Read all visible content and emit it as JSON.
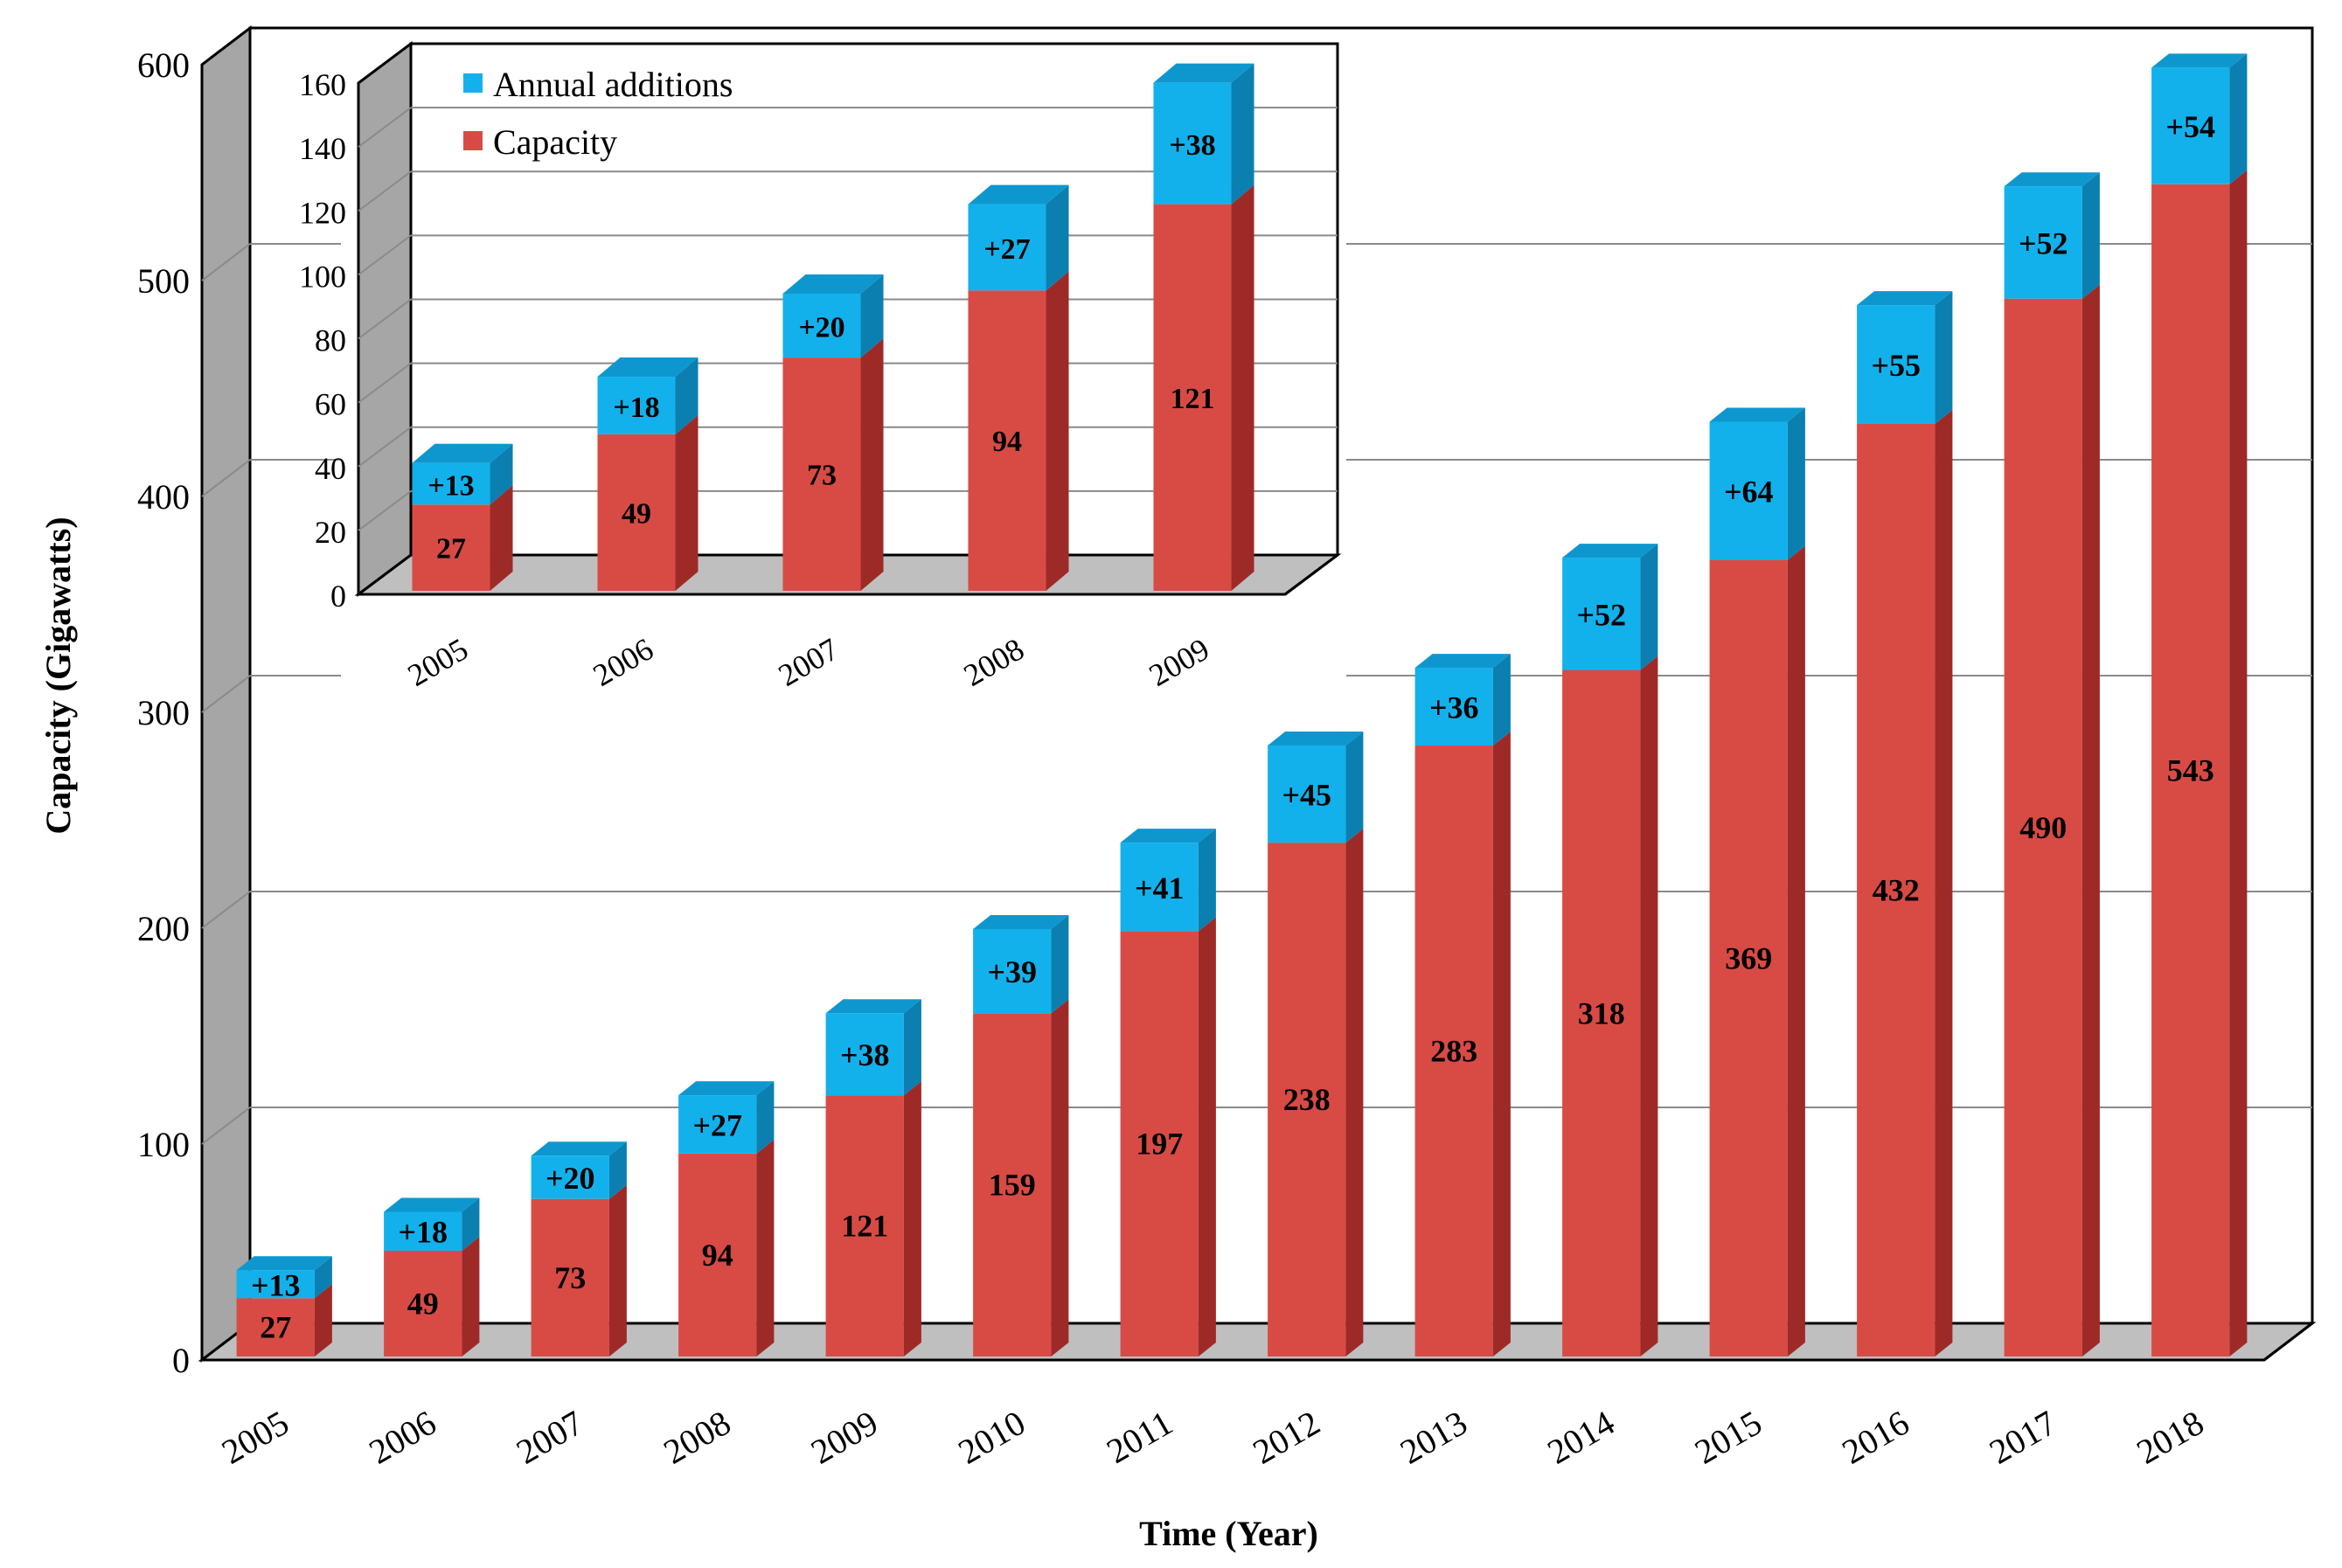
{
  "chart_data": [
    {
      "id": "main",
      "type": "bar",
      "stacked": true,
      "title": "",
      "xlabel": "Time (Year)",
      "ylabel": "Capacity (Gigawatts)",
      "ylim": [
        0,
        600
      ],
      "yticks": [
        0,
        100,
        200,
        300,
        400,
        500,
        600
      ],
      "categories": [
        "2005",
        "2006",
        "2007",
        "2008",
        "2009",
        "2010",
        "2011",
        "2012",
        "2013",
        "2014",
        "2015",
        "2016",
        "2017",
        "2018"
      ],
      "series": [
        {
          "name": "Capacity",
          "color": "#d84b45",
          "values": [
            27,
            49,
            73,
            94,
            121,
            159,
            197,
            238,
            283,
            318,
            369,
            432,
            490,
            543
          ]
        },
        {
          "name": "Annual additions",
          "color": "#13b1eb",
          "values": [
            13,
            18,
            20,
            27,
            38,
            39,
            41,
            45,
            36,
            52,
            64,
            55,
            52,
            54
          ]
        }
      ],
      "labels": {
        "capacity": [
          "27",
          "49",
          "73",
          "94",
          "121",
          "159",
          "197",
          "238",
          "283",
          "318",
          "369",
          "432",
          "490",
          "543"
        ],
        "additions": [
          "+13",
          "+18",
          "+20",
          "+27",
          "+38",
          "+39",
          "+41",
          "+45",
          "+36",
          "+52",
          "+64",
          "+55",
          "+52",
          "+54"
        ]
      },
      "grid": true
    },
    {
      "id": "inset",
      "type": "bar",
      "stacked": true,
      "title": "",
      "xlabel": "",
      "ylabel": "",
      "ylim": [
        0,
        160
      ],
      "yticks": [
        0,
        20,
        40,
        60,
        80,
        100,
        120,
        140,
        160
      ],
      "categories": [
        "2005",
        "2006",
        "2007",
        "2008",
        "2009"
      ],
      "series": [
        {
          "name": "Capacity",
          "color": "#d84b45",
          "values": [
            27,
            49,
            73,
            94,
            121
          ]
        },
        {
          "name": "Annual additions",
          "color": "#13b1eb",
          "values": [
            13,
            18,
            20,
            27,
            38
          ]
        }
      ],
      "labels": {
        "capacity": [
          "27",
          "49",
          "73",
          "94",
          "121"
        ],
        "additions": [
          "+13",
          "+18",
          "+20",
          "+27",
          "+38"
        ]
      },
      "legend": {
        "position": "top-left",
        "items": [
          {
            "label": "Annual additions",
            "color": "#13b1eb"
          },
          {
            "label": "Capacity",
            "color": "#d84b45"
          }
        ]
      },
      "grid": true
    }
  ],
  "colors": {
    "capacity_front": "#d84b45",
    "capacity_side": "#9e2a27",
    "capacity_top": "#e8726c",
    "additions_front": "#13b1eb",
    "additions_side": "#0b7fb0",
    "additions_top": "#0e97cf",
    "wall": "#a6a6a6",
    "floor": "#bfbfbf",
    "grid": "#8a8a8a"
  }
}
